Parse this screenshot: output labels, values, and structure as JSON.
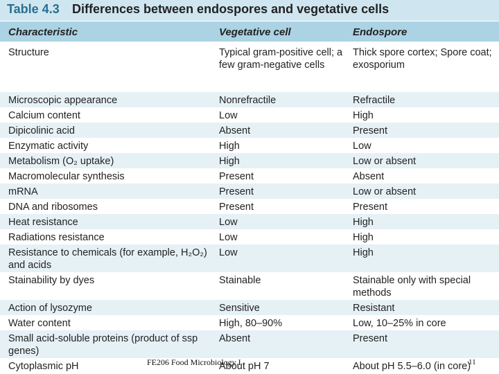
{
  "title": {
    "label": "Table 4.3",
    "text": "Differences between endospores and vegetative cells"
  },
  "headers": [
    "Characteristic",
    "Vegetative cell",
    "Endospore"
  ],
  "rows": [
    {
      "c": "Structure",
      "v": "Typical gram-positive cell; a few gram-negative cells",
      "e": "Thick spore cortex; Spore coat; exosporium"
    },
    {
      "c": "Microscopic appearance",
      "v": "Nonrefractile",
      "e": "Refractile"
    },
    {
      "c": "Calcium content",
      "v": "Low",
      "e": "High"
    },
    {
      "c": "Dipicolinic acid",
      "v": "Absent",
      "e": "Present"
    },
    {
      "c": "Enzymatic activity",
      "v": "High",
      "e": "Low"
    },
    {
      "c": "Metabolism (O₂ uptake)",
      "v": "High",
      "e": "Low or absent"
    },
    {
      "c": "Macromolecular synthesis",
      "v": "Present",
      "e": "Absent"
    },
    {
      "c": "mRNA",
      "v": "Present",
      "e": "Low or absent"
    },
    {
      "c": "DNA and ribosomes",
      "v": "Present",
      "e": "Present"
    },
    {
      "c": "Heat resistance",
      "v": "Low",
      "e": "High"
    },
    {
      "c": "Radiations resistance",
      "v": "Low",
      "e": "High"
    },
    {
      "c": "Resistance to chemicals (for example, H₂O₂) and acids",
      "v": "Low",
      "e": "High"
    },
    {
      "c": "Stainability by dyes",
      "v": "Stainable",
      "e": "Stainable only with special methods"
    },
    {
      "c": "Action of lysozyme",
      "v": "Sensitive",
      "e": "Resistant"
    },
    {
      "c": "Water content",
      "v": "High, 80–90%",
      "e": "Low, 10–25% in core"
    },
    {
      "c": "Small acid-soluble proteins (product of ssp genes)",
      "v": "Absent",
      "e": "Present"
    },
    {
      "c": "Cytoplasmic pH",
      "v": "About pH 7",
      "e": "About pH 5.5–6.0 (in core)"
    }
  ],
  "footer": "FE206 Food Microbiology I",
  "page_number": "11"
}
